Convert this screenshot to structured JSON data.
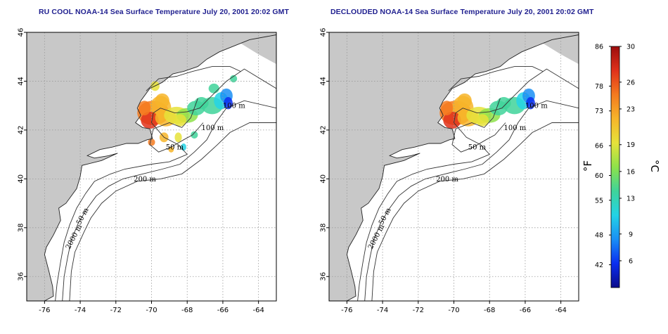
{
  "panels": [
    {
      "id": "left",
      "title": "RU COOL NOAA-14 Sea Surface Temperature July 20, 2001 20:02 GMT",
      "cloud_masked": false
    },
    {
      "id": "right",
      "title": "DECLOUDED NOAA-14 Sea Surface Temperature July 20, 2001 20:02 GMT",
      "cloud_masked": true
    }
  ],
  "map": {
    "lon_range": [
      -77,
      -63
    ],
    "lat_range": [
      35,
      46
    ],
    "lon_ticks": [
      "-76",
      "-74",
      "-72",
      "-70",
      "-68",
      "-66",
      "-64"
    ],
    "lat_ticks": [
      "36",
      "38",
      "40",
      "42",
      "44",
      "46"
    ],
    "land_color": "#c8c8c8",
    "ocean_color": "#ffffff",
    "grid": "dotted"
  },
  "contour_labels": [
    "100 m",
    "100 m",
    "50 m",
    "200 m",
    "50 m",
    "2000 m"
  ],
  "colorbar": {
    "fahrenheit_unit": "°F",
    "celsius_unit": "°C",
    "fahrenheit_ticks": [
      "86",
      "78",
      "73",
      "66",
      "60",
      "55",
      "48",
      "42"
    ],
    "celsius_ticks": [
      "30",
      "26",
      "23",
      "19",
      "16",
      "13",
      "9",
      "6"
    ],
    "range_c": [
      3,
      30
    ],
    "colors": [
      "#0b0b8a",
      "#0a2ef0",
      "#1a8ff5",
      "#23d3e6",
      "#3fd39a",
      "#8ee24a",
      "#e6e23a",
      "#f7b52a",
      "#f47a1f",
      "#e0311b",
      "#9c0d0d"
    ]
  }
}
